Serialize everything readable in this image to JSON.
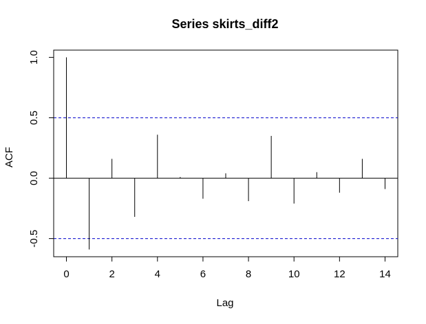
{
  "chart_data": {
    "type": "bar",
    "title": "Series  skirts_diff2",
    "xlabel": "Lag",
    "ylabel": "ACF",
    "x": [
      0,
      1,
      2,
      3,
      4,
      5,
      6,
      7,
      8,
      9,
      10,
      11,
      12,
      13,
      14
    ],
    "values": [
      1.0,
      -0.59,
      0.16,
      -0.32,
      0.36,
      0.01,
      -0.17,
      0.04,
      -0.19,
      0.35,
      -0.21,
      0.05,
      -0.12,
      0.16,
      -0.09
    ],
    "confidence_bounds": [
      0.5,
      -0.5
    ],
    "xticks": [
      0,
      2,
      4,
      6,
      8,
      10,
      12,
      14
    ],
    "yticks": [
      -0.5,
      0.0,
      0.5,
      1.0
    ],
    "ytick_labels": [
      "-0.5",
      "0.0",
      "0.5",
      "1.0"
    ],
    "xlim": [
      -0.56,
      14.56
    ],
    "ylim": [
      -0.65,
      1.06
    ],
    "bound_color": "#0000cc",
    "grid": false
  }
}
